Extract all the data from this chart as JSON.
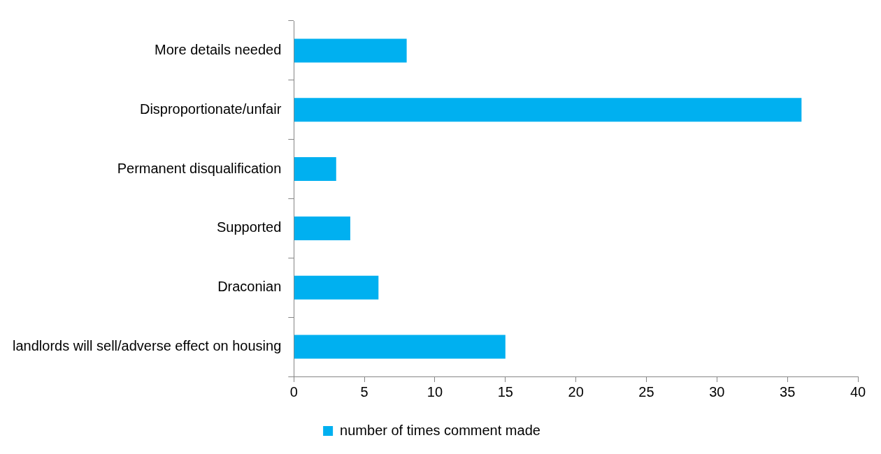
{
  "chart_data": {
    "type": "bar",
    "orientation": "horizontal",
    "categories": [
      "More details needed",
      "Disproportionate/unfair",
      "Permanent disqualification",
      "Supported",
      "Draconian",
      "landlords will sell/adverse effect on housing"
    ],
    "series": [
      {
        "name": "number of times comment made",
        "color": "#00b0f0",
        "values": [
          8,
          36,
          3,
          4,
          6,
          15
        ]
      }
    ],
    "xlim": [
      0,
      40
    ],
    "xticks": [
      0,
      5,
      10,
      15,
      20,
      25,
      30,
      35,
      40
    ],
    "grid": false,
    "legend": "bottom"
  }
}
